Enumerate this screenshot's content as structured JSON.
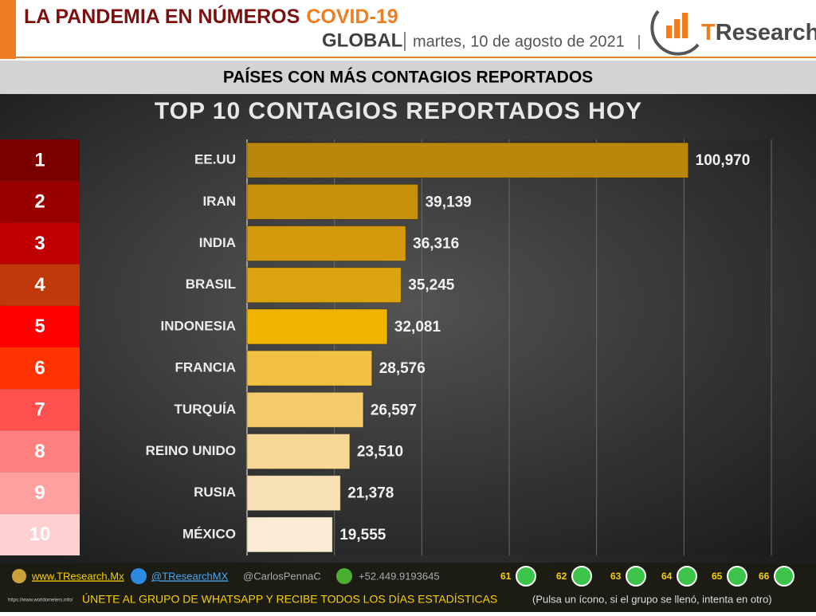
{
  "header": {
    "title": "LA PANDEMIA EN NÚMEROS",
    "title_accent": "COVID-19",
    "scope": "GLOBAL",
    "date": "martes, 10 de agosto de 2021",
    "logo_accent": "T",
    "logo_rest": "Research",
    "band": "PAÍSES CON MÁS CONTAGIOS REPORTADOS"
  },
  "ranks": [
    "1",
    "2",
    "3",
    "4",
    "5",
    "6",
    "7",
    "8",
    "9",
    "10"
  ],
  "rank_colors": [
    "#7a0000",
    "#990000",
    "#c00000",
    "#c0390b",
    "#ff0000",
    "#ff3300",
    "#ff5050",
    "#ff8080",
    "#ffa0a0",
    "#ffd0d0"
  ],
  "chart_data": {
    "type": "barh",
    "title": "TOP 10 CONTAGIOS REPORTADOS HOY",
    "categories": [
      "EE.UU",
      "IRAN",
      "INDIA",
      "BRASIL",
      "INDONESIA",
      "FRANCIA",
      "TURQUÍA",
      "REINO UNIDO",
      "RUSIA",
      "MÉXICO"
    ],
    "values": [
      100970,
      39139,
      36316,
      35245,
      32081,
      28576,
      26597,
      23510,
      21378,
      19555
    ],
    "value_labels": [
      "100,970",
      "39,139",
      "36,316",
      "35,245",
      "32,081",
      "28,576",
      "26,597",
      "23,510",
      "21,378",
      "19,555"
    ],
    "colors": [
      "#b8860b",
      "#c7900c",
      "#d39a0e",
      "#dca411",
      "#f0b400",
      "#f2c142",
      "#f4cb6c",
      "#f6d796",
      "#f8e1b6",
      "#faebd4"
    ],
    "xlim": [
      0,
      120000
    ],
    "xticks": [
      0,
      20000,
      40000,
      60000,
      80000,
      100000,
      120000
    ],
    "grid": true
  },
  "footer": {
    "web": "www.TResearch.Mx",
    "twitter": "@TResearchMX",
    "author": "@CarlosPennaC",
    "phone": "+52.449.9193645",
    "groups": [
      "61",
      "62",
      "63",
      "64",
      "65",
      "66"
    ],
    "join": "ÚNETE AL GRUPO DE WHATSAPP Y RECIBE TODOS LOS DÍAS ESTADÍSTICAS",
    "note": "(Pulsa un ícono, si el grupo se llenó, intenta en otro)",
    "source": "https://www.worldometers.info/"
  }
}
